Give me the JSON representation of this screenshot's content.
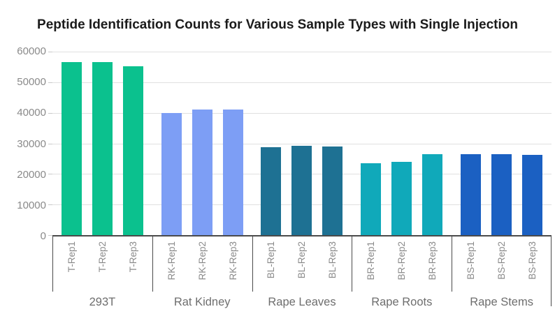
{
  "chart_data": {
    "type": "bar",
    "title": "Peptide Identification Counts for Various Sample Types with Single Injection",
    "xlabel": "",
    "ylabel": "",
    "ylim": [
      0,
      60000
    ],
    "yticks": [
      0,
      10000,
      20000,
      30000,
      40000,
      50000,
      60000
    ],
    "grid": true,
    "legend_position": "none",
    "bar_label_rotation_degrees": 90,
    "groups": [
      {
        "label": "293T",
        "color": "#0bc18e",
        "bars": [
          {
            "label": "T-Rep1",
            "value": 56500
          },
          {
            "label": "T-Rep2",
            "value": 56600
          },
          {
            "label": "T-Rep3",
            "value": 55200
          }
        ]
      },
      {
        "label": "Rat Kidney",
        "color": "#7d9ef5",
        "bars": [
          {
            "label": "RK-Rep1",
            "value": 40000
          },
          {
            "label": "RK-Rep2",
            "value": 41000
          },
          {
            "label": "RK-Rep3",
            "value": 41000
          }
        ]
      },
      {
        "label": "Rape Leaves",
        "color": "#1e7193",
        "bars": [
          {
            "label": "BL-Rep1",
            "value": 28700
          },
          {
            "label": "BL-Rep2",
            "value": 29200
          },
          {
            "label": "BL-Rep3",
            "value": 29000
          }
        ]
      },
      {
        "label": "Rape Roots",
        "color": "#10a9ba",
        "bars": [
          {
            "label": "BR-Rep1",
            "value": 23400
          },
          {
            "label": "BR-Rep2",
            "value": 23900
          },
          {
            "label": "BR-Rep3",
            "value": 26500
          }
        ]
      },
      {
        "label": "Rape Stems",
        "color": "#1b60c2",
        "bars": [
          {
            "label": "BS-Rep1",
            "value": 26500
          },
          {
            "label": "BS-Rep2",
            "value": 26400
          },
          {
            "label": "BS-Rep3",
            "value": 26200
          }
        ]
      }
    ],
    "colors": {
      "axis_line": "#4a4a4a",
      "grid_line": "#e0e0e0",
      "tick_label": "#8a8a8a",
      "group_label": "#6e6e6e",
      "title_text": "#1b1b1b"
    }
  }
}
